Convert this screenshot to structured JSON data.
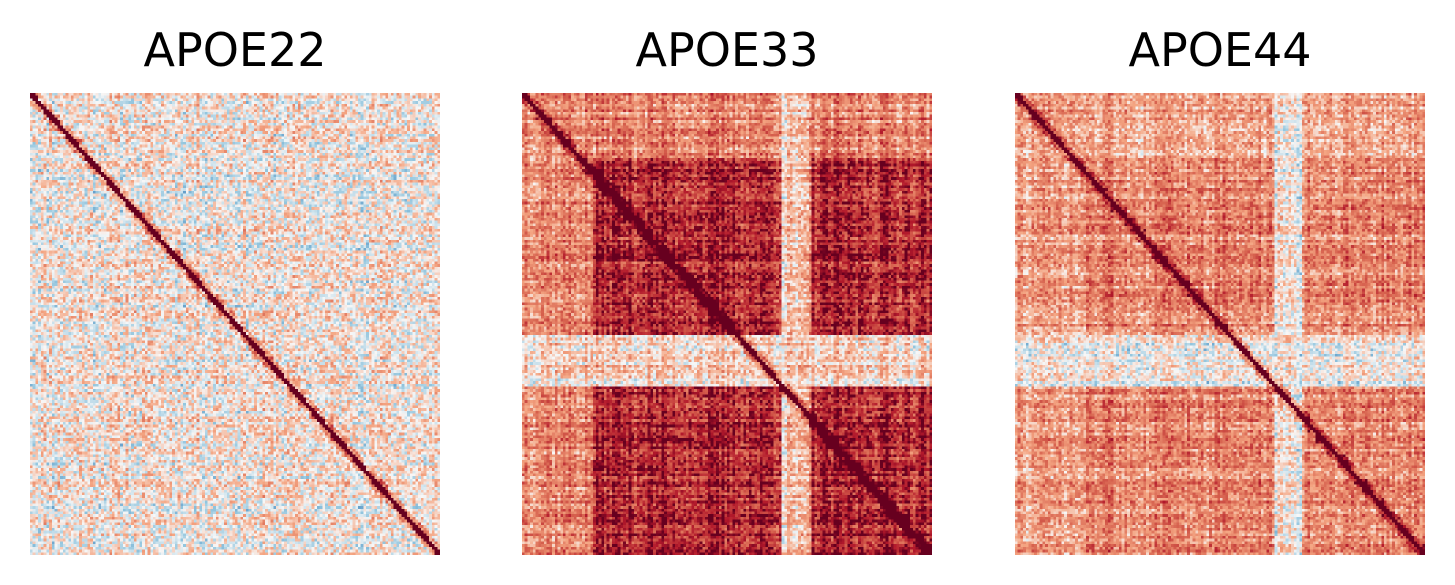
{
  "chart_data": [
    {
      "type": "heatmap",
      "title": "APOE22",
      "colormap": "RdBu_r",
      "diagonal": "strong positive",
      "block_structure": "weak",
      "mean_level": "near zero, mixed red/blue",
      "grid": false,
      "axes": "off"
    },
    {
      "type": "heatmap",
      "title": "APOE33",
      "colormap": "RdBu_r",
      "diagonal": "strong positive",
      "block_structure": "strong four-block",
      "mean_level": "mostly positive (red)",
      "grid": false,
      "axes": "off"
    },
    {
      "type": "heatmap",
      "title": "APOE44",
      "colormap": "RdBu_r",
      "diagonal": "strong positive",
      "block_structure": "moderate",
      "mean_level": "positive (red)",
      "grid": false,
      "axes": "off"
    }
  ],
  "colors": {
    "low": "#053061",
    "mid": "#f7f7f7",
    "high": "#67001f"
  }
}
